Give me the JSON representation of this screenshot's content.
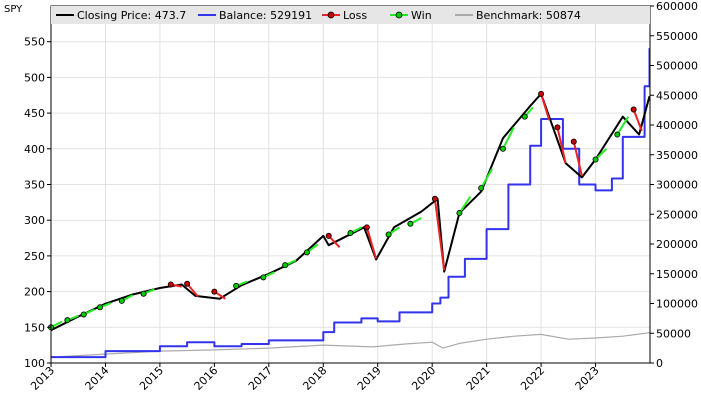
{
  "symbol": "SPY",
  "legend": {
    "items": [
      {
        "id": "close",
        "label": "Closing Price: 473.7",
        "color": "#000000",
        "marker": "none"
      },
      {
        "id": "balance",
        "label": "Balance: 529191",
        "color": "#3333ee",
        "marker": "none"
      },
      {
        "id": "loss",
        "label": "Loss",
        "color": "#ee2222",
        "marker": "red-dot"
      },
      {
        "id": "win",
        "label": "Win",
        "color": "#22ee22",
        "marker": "green-dot"
      },
      {
        "id": "benchmark",
        "label": "Benchmark: 50874",
        "color": "#aaaaaa",
        "marker": "none"
      }
    ]
  },
  "chart_data": {
    "type": "line",
    "title": "SPY",
    "x_range": [
      2013.0,
      2024.0
    ],
    "x_ticks": [
      "2013",
      "2014",
      "2015",
      "2016",
      "2017",
      "2018",
      "2019",
      "2020",
      "2021",
      "2022",
      "2023"
    ],
    "y_left": {
      "range": [
        100,
        600
      ],
      "ticks": [
        "100",
        "150",
        "200",
        "250",
        "300",
        "350",
        "400",
        "450",
        "500",
        "550"
      ]
    },
    "y_right": {
      "range": [
        0,
        600000
      ],
      "ticks": [
        "0",
        "50000",
        "100000",
        "150000",
        "200000",
        "250000",
        "300000",
        "350000",
        "400000",
        "450000",
        "500000",
        "550000",
        "600000"
      ]
    },
    "grid": true,
    "legend_position": "top",
    "colors": {
      "close": "#000000",
      "balance": "#3333ee",
      "loss": "#ee2222",
      "win": "#22ee22",
      "benchmark": "#aaaaaa"
    },
    "series": [
      {
        "name": "Closing Price: 473.7",
        "axis": "left",
        "x": [
          2013.0,
          2013.5,
          2014.0,
          2014.5,
          2015.0,
          2015.4,
          2015.65,
          2016.1,
          2016.5,
          2017.0,
          2017.5,
          2018.0,
          2018.1,
          2018.75,
          2018.97,
          2019.3,
          2019.8,
          2020.1,
          2020.22,
          2020.5,
          2020.9,
          2021.3,
          2021.8,
          2022.0,
          2022.45,
          2022.75,
          2023.0,
          2023.5,
          2023.8,
          2023.99
        ],
        "y": [
          146,
          165,
          183,
          196,
          205,
          210,
          194,
          190,
          209,
          225,
          243,
          278,
          265,
          290,
          245,
          290,
          312,
          330,
          228,
          310,
          340,
          415,
          460,
          477,
          380,
          360,
          385,
          445,
          420,
          473.7
        ]
      },
      {
        "name": "Balance: 529191",
        "axis": "right",
        "x": [
          2013.0,
          2014.0,
          2015.0,
          2015.5,
          2016.0,
          2016.5,
          2017.0,
          2018.0,
          2018.2,
          2018.7,
          2019.0,
          2019.4,
          2020.0,
          2020.15,
          2020.3,
          2020.6,
          2021.0,
          2021.4,
          2021.8,
          2022.0,
          2022.4,
          2022.7,
          2023.0,
          2023.3,
          2023.5,
          2023.9,
          2023.99
        ],
        "y": [
          10000,
          20000,
          28000,
          35000,
          28000,
          32000,
          38000,
          52000,
          68000,
          75000,
          70000,
          85000,
          100000,
          110000,
          145000,
          175000,
          225000,
          300000,
          365000,
          410000,
          360000,
          300000,
          290000,
          310000,
          380000,
          465000,
          529191
        ]
      },
      {
        "name": "Benchmark: 50874",
        "axis": "right",
        "x": [
          2013.0,
          2014.0,
          2015.0,
          2016.0,
          2017.0,
          2018.0,
          2018.9,
          2019.5,
          2020.0,
          2020.2,
          2020.5,
          2021.0,
          2021.5,
          2022.0,
          2022.5,
          2023.0,
          2023.5,
          2023.99
        ],
        "y": [
          10000,
          15000,
          20000,
          22000,
          25000,
          30000,
          27000,
          32000,
          35000,
          25000,
          33000,
          40000,
          45000,
          48000,
          40000,
          42000,
          45000,
          50874
        ]
      }
    ],
    "trades": [
      {
        "x0": 2013.0,
        "y0": 150,
        "x1": 2013.2,
        "y1": 158,
        "result": "win"
      },
      {
        "x0": 2013.3,
        "y0": 160,
        "x1": 2013.5,
        "y1": 166,
        "result": "win"
      },
      {
        "x0": 2013.6,
        "y0": 168,
        "x1": 2013.8,
        "y1": 175,
        "result": "win"
      },
      {
        "x0": 2013.9,
        "y0": 178,
        "x1": 2014.1,
        "y1": 184,
        "result": "win"
      },
      {
        "x0": 2014.3,
        "y0": 187,
        "x1": 2014.5,
        "y1": 195,
        "result": "win"
      },
      {
        "x0": 2014.7,
        "y0": 197,
        "x1": 2014.9,
        "y1": 203,
        "result": "win"
      },
      {
        "x0": 2015.2,
        "y0": 210,
        "x1": 2015.4,
        "y1": 207,
        "result": "loss"
      },
      {
        "x0": 2015.5,
        "y0": 211,
        "x1": 2015.7,
        "y1": 193,
        "result": "loss"
      },
      {
        "x0": 2016.0,
        "y0": 200,
        "x1": 2016.2,
        "y1": 190,
        "result": "loss"
      },
      {
        "x0": 2016.4,
        "y0": 208,
        "x1": 2016.6,
        "y1": 214,
        "result": "win"
      },
      {
        "x0": 2016.9,
        "y0": 220,
        "x1": 2017.1,
        "y1": 227,
        "result": "win"
      },
      {
        "x0": 2017.3,
        "y0": 237,
        "x1": 2017.5,
        "y1": 244,
        "result": "win"
      },
      {
        "x0": 2017.7,
        "y0": 255,
        "x1": 2017.9,
        "y1": 266,
        "result": "win"
      },
      {
        "x0": 2018.1,
        "y0": 278,
        "x1": 2018.3,
        "y1": 262,
        "result": "loss"
      },
      {
        "x0": 2018.5,
        "y0": 282,
        "x1": 2018.7,
        "y1": 290,
        "result": "win"
      },
      {
        "x0": 2018.8,
        "y0": 290,
        "x1": 2018.97,
        "y1": 246,
        "result": "loss"
      },
      {
        "x0": 2019.2,
        "y0": 280,
        "x1": 2019.4,
        "y1": 290,
        "result": "win"
      },
      {
        "x0": 2019.6,
        "y0": 295,
        "x1": 2019.8,
        "y1": 303,
        "result": "win"
      },
      {
        "x0": 2020.05,
        "y0": 330,
        "x1": 2020.22,
        "y1": 230,
        "result": "loss"
      },
      {
        "x0": 2020.5,
        "y0": 310,
        "x1": 2020.7,
        "y1": 333,
        "result": "win"
      },
      {
        "x0": 2020.9,
        "y0": 345,
        "x1": 2021.1,
        "y1": 372,
        "result": "win"
      },
      {
        "x0": 2021.3,
        "y0": 400,
        "x1": 2021.5,
        "y1": 430,
        "result": "win"
      },
      {
        "x0": 2021.7,
        "y0": 445,
        "x1": 2021.85,
        "y1": 458,
        "result": "win"
      },
      {
        "x0": 2022.0,
        "y0": 477,
        "x1": 2022.15,
        "y1": 440,
        "result": "loss"
      },
      {
        "x0": 2022.3,
        "y0": 430,
        "x1": 2022.45,
        "y1": 380,
        "result": "loss"
      },
      {
        "x0": 2022.6,
        "y0": 410,
        "x1": 2022.75,
        "y1": 362,
        "result": "loss"
      },
      {
        "x0": 2023.0,
        "y0": 385,
        "x1": 2023.2,
        "y1": 400,
        "result": "win"
      },
      {
        "x0": 2023.4,
        "y0": 420,
        "x1": 2023.6,
        "y1": 445,
        "result": "win"
      },
      {
        "x0": 2023.7,
        "y0": 455,
        "x1": 2023.85,
        "y1": 425,
        "result": "loss"
      }
    ]
  }
}
